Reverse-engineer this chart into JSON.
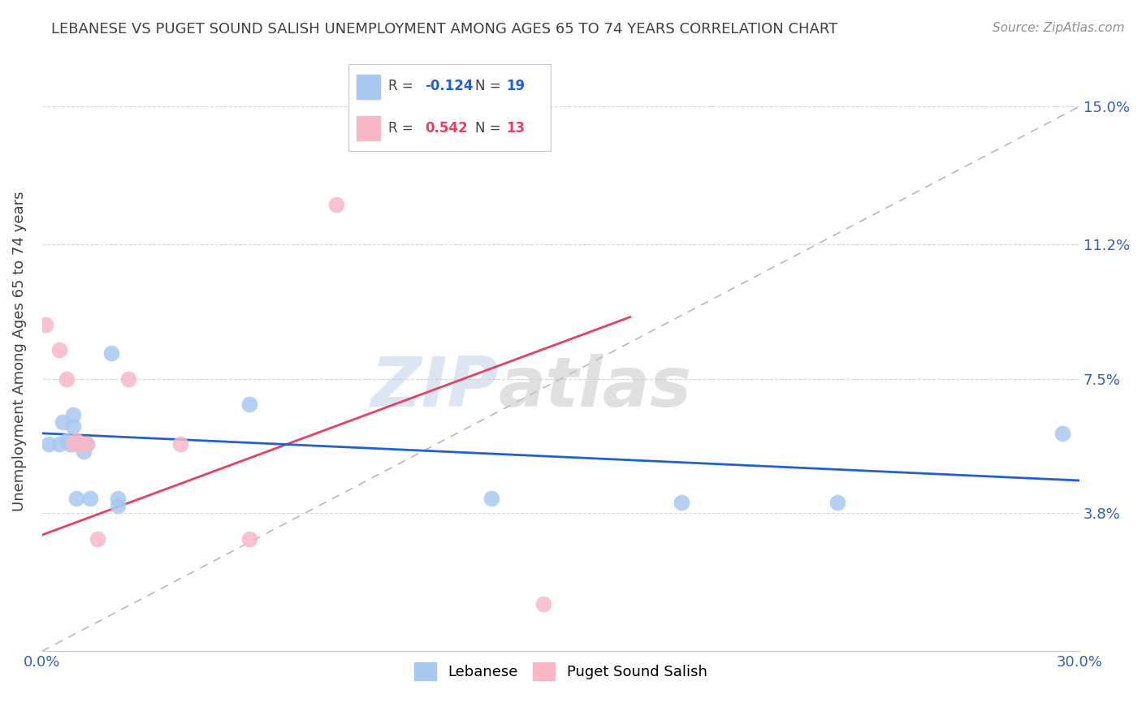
{
  "title": "LEBANESE VS PUGET SOUND SALISH UNEMPLOYMENT AMONG AGES 65 TO 74 YEARS CORRELATION CHART",
  "source": "Source: ZipAtlas.com",
  "ylabel": "Unemployment Among Ages 65 to 74 years",
  "xlim": [
    0.0,
    0.3
  ],
  "ylim": [
    0.0,
    0.165
  ],
  "xticks": [
    0.0,
    0.05,
    0.1,
    0.15,
    0.2,
    0.25,
    0.3
  ],
  "xticklabels": [
    "0.0%",
    "",
    "",
    "",
    "",
    "",
    "30.0%"
  ],
  "ytick_positions": [
    0.038,
    0.075,
    0.112,
    0.15
  ],
  "ytick_labels": [
    "3.8%",
    "7.5%",
    "11.2%",
    "15.0%"
  ],
  "watermark_zip": "ZIP",
  "watermark_atlas": "atlas",
  "blue_color": "#A8C8F0",
  "pink_color": "#F8B8C8",
  "blue_line_color": "#2060D0",
  "pink_line_color": "#E84060",
  "dashed_line_color": "#B8B8B8",
  "grid_color": "#D8D8D8",
  "title_color": "#404040",
  "axis_label_color": "#404040",
  "tick_label_color": "#3060C0",
  "blue_points": [
    [
      0.002,
      0.057
    ],
    [
      0.005,
      0.057
    ],
    [
      0.006,
      0.063
    ],
    [
      0.007,
      0.058
    ],
    [
      0.008,
      0.057
    ],
    [
      0.009,
      0.062
    ],
    [
      0.009,
      0.065
    ],
    [
      0.01,
      0.042
    ],
    [
      0.011,
      0.057
    ],
    [
      0.012,
      0.055
    ],
    [
      0.013,
      0.057
    ],
    [
      0.014,
      0.042
    ],
    [
      0.02,
      0.082
    ],
    [
      0.022,
      0.042
    ],
    [
      0.022,
      0.04
    ],
    [
      0.06,
      0.068
    ],
    [
      0.13,
      0.042
    ],
    [
      0.185,
      0.041
    ],
    [
      0.23,
      0.041
    ],
    [
      0.295,
      0.06
    ]
  ],
  "pink_points": [
    [
      0.001,
      0.09
    ],
    [
      0.005,
      0.083
    ],
    [
      0.007,
      0.075
    ],
    [
      0.009,
      0.057
    ],
    [
      0.01,
      0.058
    ],
    [
      0.011,
      0.057
    ],
    [
      0.013,
      0.057
    ],
    [
      0.016,
      0.031
    ],
    [
      0.025,
      0.075
    ],
    [
      0.04,
      0.057
    ],
    [
      0.06,
      0.031
    ],
    [
      0.085,
      0.123
    ],
    [
      0.145,
      0.013
    ]
  ],
  "blue_trendline_x": [
    0.0,
    0.3
  ],
  "blue_trendline_y": [
    0.06,
    0.047
  ],
  "pink_trendline_x": [
    0.0,
    0.17
  ],
  "pink_trendline_y": [
    0.032,
    0.092
  ],
  "dashed_line_x": [
    0.0,
    0.3
  ],
  "dashed_line_y": [
    0.0,
    0.15
  ]
}
